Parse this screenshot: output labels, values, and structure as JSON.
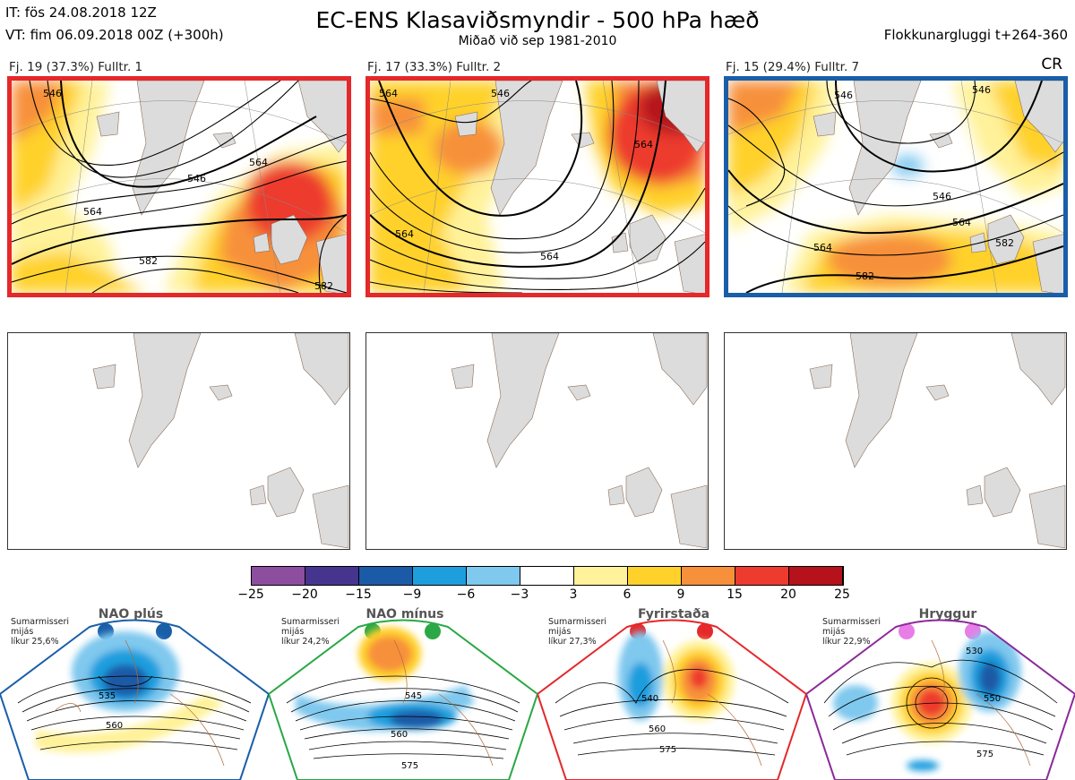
{
  "header": {
    "it": "IT: fös 24.08.2018 12Z",
    "vt": "VT: fim 06.09.2018 00Z  (+300h)",
    "title": "EC-ENS Klasaviðsmyndir - 500 hPa hæð",
    "subtitle": "Miðað við sep 1981-2010",
    "window": "Flokkunargluggi t+264-360",
    "cr": "CR"
  },
  "clusters": [
    {
      "label": "Fj. 19 (37.3%)   Fulltr. 1",
      "border_color": "#e5282b",
      "contours": [
        "546",
        "564",
        "582",
        "564",
        "582",
        "546"
      ]
    },
    {
      "label": "Fj. 17 (33.3%)   Fulltr. 2",
      "border_color": "#e5282b",
      "contours": [
        "564",
        "546",
        "564",
        "564",
        "564"
      ]
    },
    {
      "label": "Fj. 15 (29.4%)   Fulltr. 7",
      "border_color": "#1a5ea8",
      "contours": [
        "546",
        "546",
        "564",
        "564",
        "582",
        "582",
        "546"
      ]
    }
  ],
  "colorbar": {
    "ticks": [
      "−25",
      "−20",
      "−15",
      "−9",
      "−6",
      "−3",
      "3",
      "6",
      "9",
      "15",
      "20",
      "25"
    ],
    "colors": [
      "#8d4e9f",
      "#46358f",
      "#1b5aa6",
      "#1f9ede",
      "#7fc8ee",
      "#ffffff",
      "#fff29a",
      "#ffd12a",
      "#f7903a",
      "#ed3b2f",
      "#b5121b"
    ]
  },
  "regimes": [
    {
      "name": "NAO plús",
      "line1": "Sumarmisseri",
      "line2": "mijás",
      "line3": "líkur 25,6%",
      "color": "#1a5ea8",
      "dot_color": "#1a5ea8",
      "contours": [
        "535",
        "560"
      ]
    },
    {
      "name": "NAO mínus",
      "line1": "Sumarmisseri",
      "line2": "mijás",
      "line3": "líkur 24,2%",
      "color": "#2aa845",
      "dot_color": "#2aa845",
      "contours": [
        "545",
        "560",
        "575"
      ]
    },
    {
      "name": "Fyrirstaða",
      "line1": "Sumarmisseri",
      "line2": "mijás",
      "line3": "líkur 27,3%",
      "color": "#e5282b",
      "dot_color": "#e5282b",
      "contours": [
        "540",
        "560",
        "575"
      ]
    },
    {
      "name": "Hryggur",
      "line1": "Sumarmisseri",
      "line2": "mijás",
      "line3": "líkur 22,9%",
      "color": "#8c2a9a",
      "dot_color": "#e87de8",
      "contours": [
        "530",
        "550",
        "575"
      ]
    }
  ]
}
